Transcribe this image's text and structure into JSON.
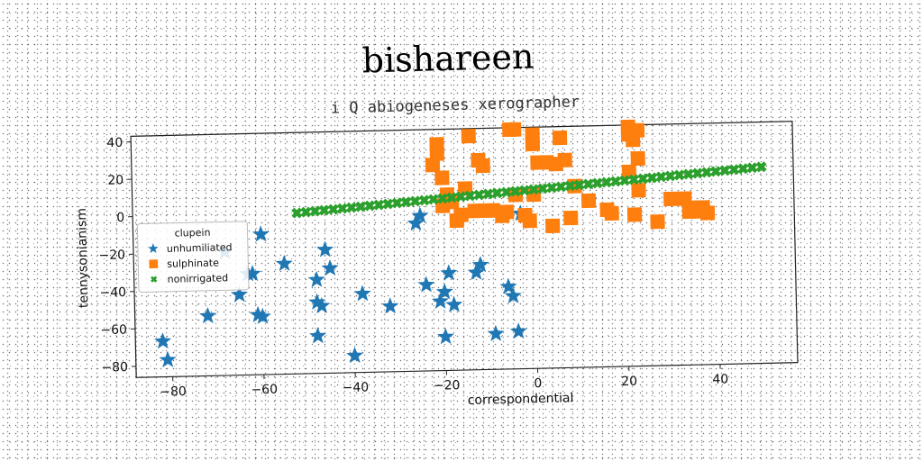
{
  "chart_data": {
    "type": "scatter",
    "title": "bishareen",
    "subtitle": "i Q abiogeneses xerographer",
    "xlabel": "correspondential",
    "ylabel": "tennysonianism",
    "xlim": [
      -88,
      57
    ],
    "ylim": [
      -86,
      43
    ],
    "xticks": [
      -80,
      -60,
      -40,
      -20,
      0,
      20,
      40
    ],
    "yticks": [
      -80,
      -60,
      -40,
      -20,
      0,
      20,
      40
    ],
    "grid": false,
    "legend": {
      "title": "clupein",
      "position": "center-left"
    },
    "series": [
      {
        "name": "unhumiliated",
        "marker": "star",
        "color": "#1f77b4",
        "points": [
          [
            -82,
            -67
          ],
          [
            -81,
            -77
          ],
          [
            -72,
            -54
          ],
          [
            -68,
            -20
          ],
          [
            -65,
            -43
          ],
          [
            -62,
            -32
          ],
          [
            -61,
            -54
          ],
          [
            -60,
            -55
          ],
          [
            -60,
            -11
          ],
          [
            -63,
            -32
          ],
          [
            -55,
            -27
          ],
          [
            -48,
            -36
          ],
          [
            -48,
            -48
          ],
          [
            -47,
            -50
          ],
          [
            -48,
            -66
          ],
          [
            -46,
            -20
          ],
          [
            -45,
            -30
          ],
          [
            -38,
            -44
          ],
          [
            -40,
            -77
          ],
          [
            -32,
            -51
          ],
          [
            -25,
            -3
          ],
          [
            -26,
            -7
          ],
          [
            -24,
            -40
          ],
          [
            -21,
            -49
          ],
          [
            -20,
            -68
          ],
          [
            -20,
            -44
          ],
          [
            -19,
            -34
          ],
          [
            -18,
            -51
          ],
          [
            -13,
            -34
          ],
          [
            -12,
            -30
          ],
          [
            -9,
            -67
          ],
          [
            -6,
            -42
          ],
          [
            -5,
            -47
          ],
          [
            -4,
            -66
          ],
          [
            -3,
            -3
          ]
        ]
      },
      {
        "name": "sulphinate",
        "marker": "square",
        "color": "#ff7f0e",
        "points": [
          [
            -21,
            35
          ],
          [
            -21,
            30
          ],
          [
            -22,
            24
          ],
          [
            -20,
            17
          ],
          [
            -14,
            39
          ],
          [
            -12,
            26
          ],
          [
            -11,
            23
          ],
          [
            -5,
            42
          ],
          [
            -4,
            42
          ],
          [
            0,
            39
          ],
          [
            0,
            34
          ],
          [
            6,
            37
          ],
          [
            1,
            24
          ],
          [
            3,
            24
          ],
          [
            5,
            23
          ],
          [
            7,
            25
          ],
          [
            9,
            11
          ],
          [
            -19,
            8
          ],
          [
            -18,
            4
          ],
          [
            -16,
            -3
          ],
          [
            -17,
            -6
          ],
          [
            -15,
            11
          ],
          [
            -13,
            -1
          ],
          [
            -11,
            -1
          ],
          [
            -9,
            -1
          ],
          [
            -7,
            -4
          ],
          [
            -6,
            -2
          ],
          [
            -1,
            -7
          ],
          [
            -4,
            7
          ],
          [
            0,
            7
          ],
          [
            4,
            -10
          ],
          [
            8,
            -6
          ],
          [
            12,
            3
          ],
          [
            21,
            42
          ],
          [
            21,
            38
          ],
          [
            23,
            40
          ],
          [
            22,
            35
          ],
          [
            23,
            25
          ],
          [
            21,
            18
          ],
          [
            23,
            8
          ],
          [
            16,
            -2
          ],
          [
            17,
            -4
          ],
          [
            22,
            -5
          ],
          [
            27,
            -9
          ],
          [
            30,
            3
          ],
          [
            33,
            3
          ],
          [
            35,
            -2
          ],
          [
            36,
            -4
          ],
          [
            38,
            -5
          ],
          [
            34,
            -4
          ],
          [
            37,
            -2
          ],
          [
            -20,
            2
          ],
          [
            -2,
            -4
          ]
        ]
      },
      {
        "name": "nonirrigated",
        "marker": "x",
        "color": "#2ca02c",
        "line": {
          "x_start": -52,
          "x_end": 50,
          "y_start": 0,
          "y_end": 19,
          "count": 52
        }
      }
    ]
  }
}
